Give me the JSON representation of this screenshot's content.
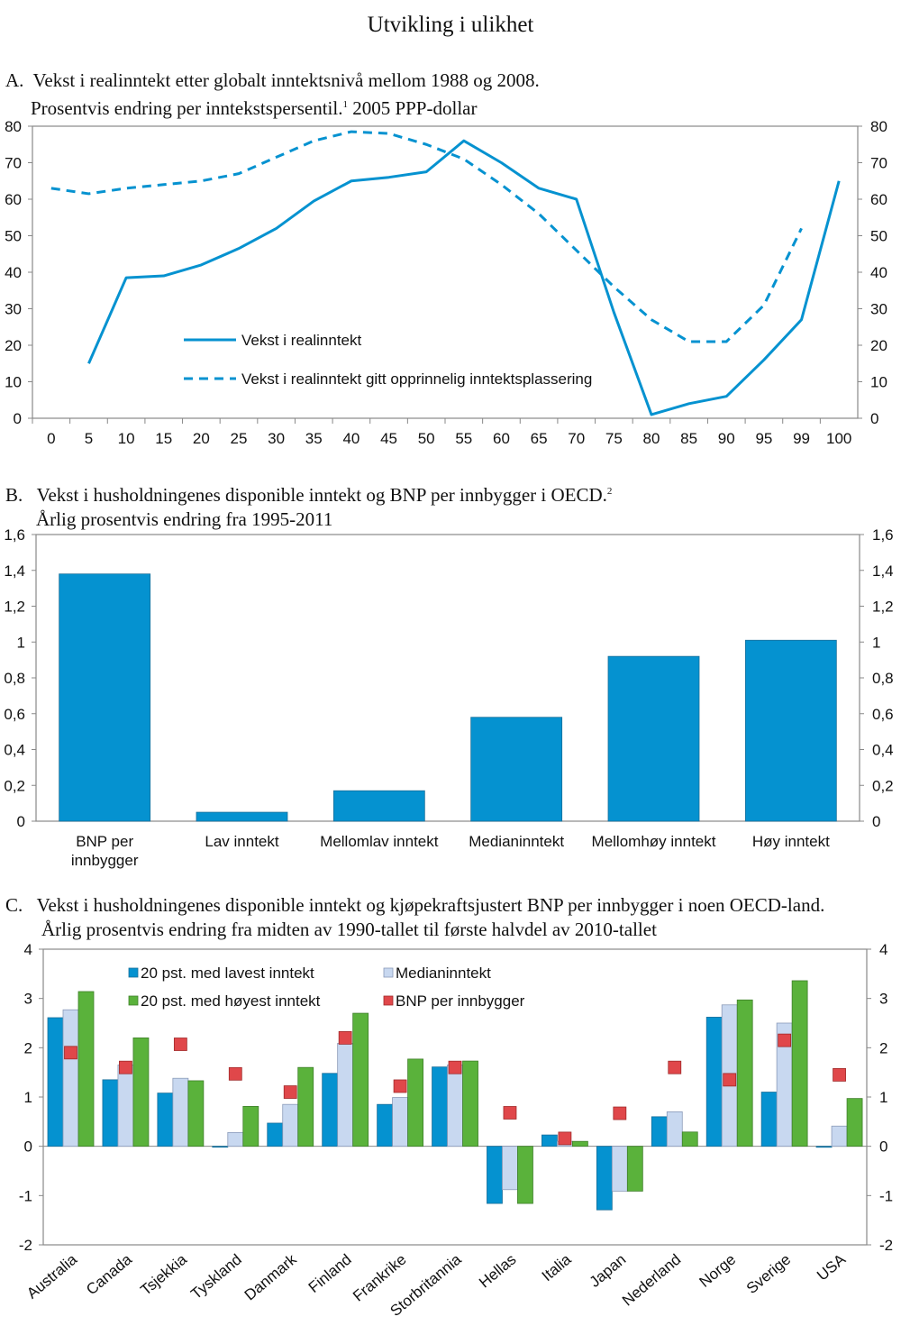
{
  "title": "Utvikling i ulikhet",
  "colors": {
    "blue": "#0592d0",
    "light_blue": "#c8d8f0",
    "green": "#5ab23b",
    "red": "#e0474a",
    "axis": "#888888"
  },
  "panels": {
    "a": {
      "letter": "A.",
      "line1": "Vekst i realinntekt etter globalt inntektsnivå mellom 1988 og 2008.",
      "line2": "Prosentvis endring per inntekstspersentil.",
      "footnote": "1",
      "line2b": " 2005 PPP-dollar"
    },
    "b": {
      "letter": "B.",
      "line1": "Vekst i husholdningenes disponible inntekt og BNP per innbygger i OECD.",
      "footnote": "2",
      "line2": "Årlig prosentvis endring fra 1995-2011"
    },
    "c": {
      "letter": "C.",
      "line1": "Vekst i husholdningenes disponible inntekt og kjøpekraftsjustert BNP per innbygger i noen OECD-land.",
      "line2": "Årlig prosentvis endring  fra midten av 1990-tallet til første halvdel av 2010-tallet"
    }
  },
  "chart_data": [
    {
      "type": "line",
      "categories": [
        "0",
        "5",
        "10",
        "15",
        "20",
        "25",
        "30",
        "35",
        "40",
        "45",
        "50",
        "55",
        "60",
        "65",
        "70",
        "75",
        "80",
        "85",
        "90",
        "95",
        "99",
        "100"
      ],
      "ylim": [
        0,
        80
      ],
      "yticks": [
        "0",
        "10",
        "20",
        "30",
        "40",
        "50",
        "60",
        "70",
        "80"
      ],
      "legend_placement": "bottom-left inside",
      "series": [
        {
          "name": "Vekst i realinntekt",
          "style": "solid",
          "values": [
            null,
            15,
            38.5,
            39,
            42,
            46.5,
            52,
            59.5,
            65,
            66,
            67.5,
            76,
            70,
            63,
            60,
            29,
            1,
            4,
            6,
            16,
            27,
            65
          ]
        },
        {
          "name": "Vekst i realinntekt gitt opprinnelig inntektsplassering",
          "style": "dashed",
          "values": [
            63,
            61.5,
            63,
            64,
            65,
            67,
            71.5,
            76,
            78.5,
            78,
            75,
            71,
            64,
            56,
            46,
            36,
            27,
            21,
            21,
            31,
            52,
            null
          ]
        }
      ]
    },
    {
      "type": "bar",
      "categories": [
        [
          "BNP per",
          "innbygger"
        ],
        [
          "Lav inntekt"
        ],
        [
          "Mellomlav inntekt"
        ],
        [
          "Medianinntekt"
        ],
        [
          "Mellomhøy inntekt"
        ],
        [
          "Høy inntekt"
        ]
      ],
      "values": [
        1.38,
        0.05,
        0.17,
        0.58,
        0.92,
        1.01
      ],
      "ylim": [
        0,
        1.6
      ],
      "yticks": [
        "0",
        "0,2",
        "0,4",
        "0,6",
        "0,8",
        "1",
        "1,2",
        "1,4",
        "1,6"
      ]
    },
    {
      "type": "bar",
      "categories": [
        "Australia",
        "Canada",
        "Tsjekkia",
        "Tyskland",
        "Danmark",
        "Finland",
        "Frankrike",
        "Storbritannia",
        "Hellas",
        "Italia",
        "Japan",
        "Nederland",
        "Norge",
        "Sverige",
        "USA"
      ],
      "ylim": [
        -2,
        4
      ],
      "yticks": [
        "-2",
        "-1",
        "0",
        "1",
        "2",
        "3",
        "4"
      ],
      "legend_placement": "top-left inside",
      "series": [
        {
          "name": "20 pst. med lavest inntekt",
          "kind": "bar",
          "values": [
            2.61,
            1.35,
            1.08,
            -0.01,
            0.47,
            1.48,
            0.85,
            1.61,
            -1.16,
            0.23,
            -1.29,
            0.6,
            2.62,
            1.1,
            -0.02
          ]
        },
        {
          "name": "Medianinntekt",
          "kind": "bar",
          "values": [
            2.77,
            1.65,
            1.38,
            0.28,
            0.85,
            2.09,
            0.99,
            1.65,
            -0.88,
            0.1,
            -0.91,
            0.7,
            2.87,
            2.5,
            0.41
          ]
        },
        {
          "name": "20 pst. med høyest inntekt",
          "kind": "bar",
          "values": [
            3.14,
            2.2,
            1.33,
            0.81,
            1.6,
            2.7,
            1.77,
            1.73,
            -1.16,
            0.1,
            -0.91,
            0.29,
            2.97,
            3.36,
            0.97
          ]
        },
        {
          "name": "BNP per innbygger",
          "kind": "marker",
          "values": [
            1.9,
            1.6,
            2.07,
            1.47,
            1.1,
            2.2,
            1.22,
            1.6,
            0.68,
            0.16,
            0.67,
            1.6,
            1.35,
            2.15,
            1.45
          ]
        }
      ]
    }
  ]
}
